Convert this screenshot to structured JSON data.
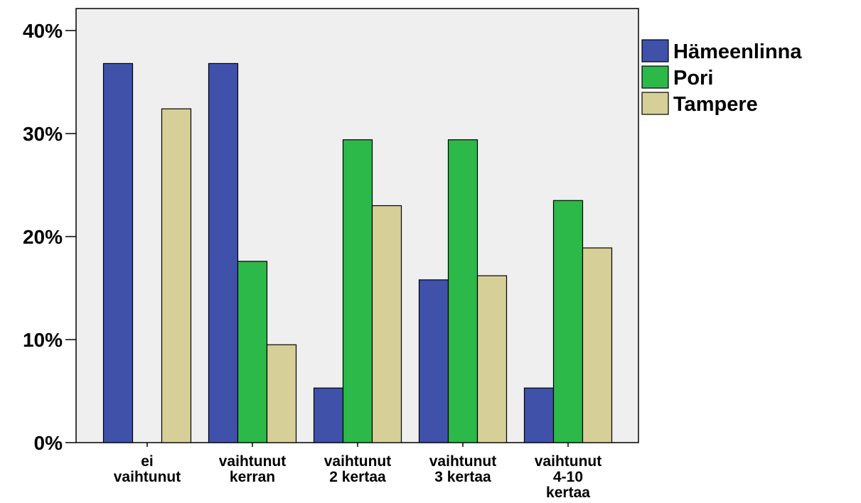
{
  "chart_data": {
    "type": "bar",
    "categories": [
      [
        "ei",
        "vaihtunut"
      ],
      [
        "vaihtunut",
        "kerran"
      ],
      [
        "vaihtunut",
        "2 kertaa"
      ],
      [
        "vaihtunut",
        "3 kertaa"
      ],
      [
        "vaihtunut",
        "4-10",
        "kertaa"
      ]
    ],
    "series": [
      {
        "name": "Hämeenlinna",
        "color": "#3f51a9",
        "values": [
          36.8,
          36.8,
          5.3,
          15.8,
          5.3
        ]
      },
      {
        "name": "Pori",
        "color": "#2db84a",
        "values": [
          0,
          17.6,
          29.4,
          29.4,
          23.5
        ]
      },
      {
        "name": "Tampere",
        "color": "#d6cf98",
        "values": [
          32.4,
          9.5,
          23.0,
          16.2,
          18.9
        ]
      }
    ],
    "yticks": [
      "0%",
      "10%",
      "20%",
      "30%",
      "40%"
    ],
    "ylim": [
      0,
      40
    ],
    "plot_background": "#efefef",
    "legend_position": "right"
  }
}
